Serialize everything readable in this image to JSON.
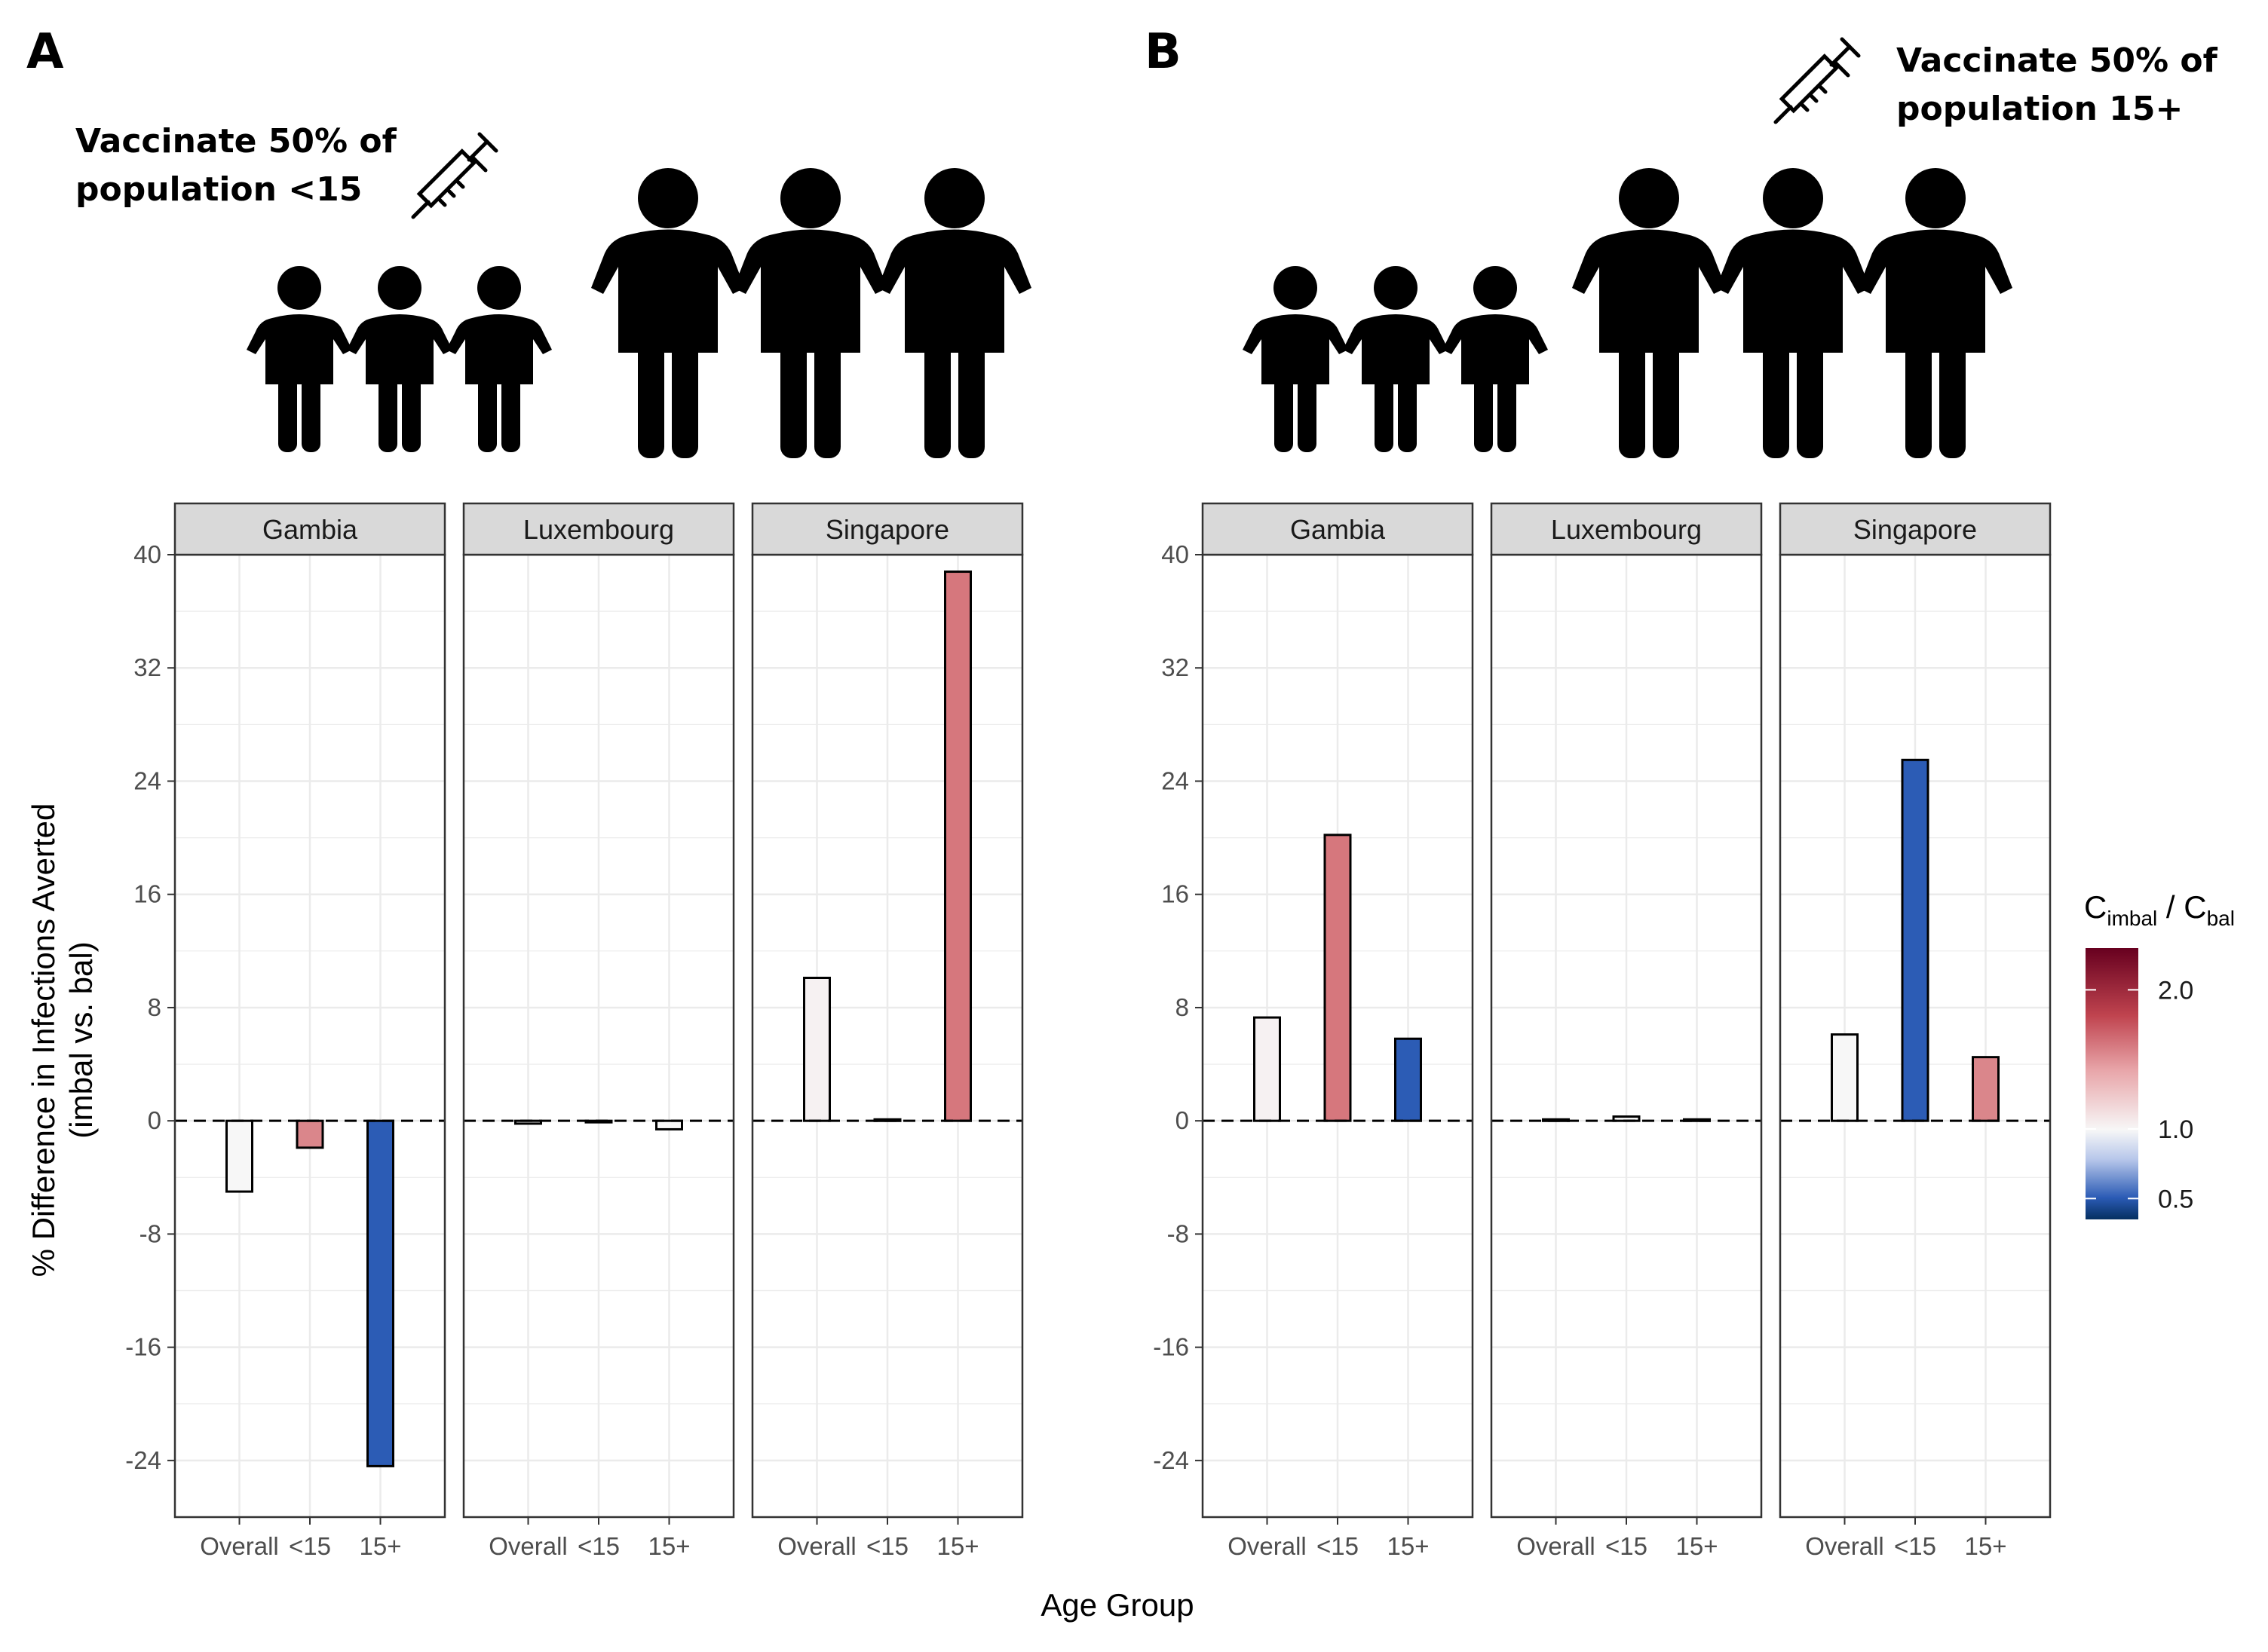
{
  "figure": {
    "panel_a": {
      "letter": "A",
      "caption_lines": [
        "Vaccinate 50% of",
        "population <15"
      ]
    },
    "panel_b": {
      "letter": "B",
      "caption_lines": [
        "Vaccinate 50% of",
        "population 15+"
      ]
    },
    "icons": [
      "syringe-icon",
      "child-figure-icon",
      "adult-figure-icon"
    ]
  },
  "chart_data": [
    {
      "type": "bar",
      "panel": "A",
      "facets": [
        "Gambia",
        "Luxembourg",
        "Singapore"
      ],
      "categories": [
        "Overall",
        "<15",
        "15+"
      ],
      "xlabel": "Age Group",
      "ylabel_lines": [
        "% Difference in Infections Averted",
        "(imbal vs. bal)"
      ],
      "ylim": [
        -28,
        40
      ],
      "yticks": [
        -24,
        -16,
        -8,
        0,
        8,
        16,
        24,
        32,
        40
      ],
      "reference_line": 0,
      "grid": true,
      "series": [
        {
          "facet": "Gambia",
          "values": [
            -5.0,
            -1.9,
            -24.4
          ],
          "ratios": [
            1.0,
            1.4,
            0.45
          ]
        },
        {
          "facet": "Luxembourg",
          "values": [
            -0.2,
            -0.1,
            -0.6
          ],
          "ratios": [
            1.0,
            1.0,
            1.0
          ]
        },
        {
          "facet": "Singapore",
          "values": [
            10.1,
            0.1,
            38.8
          ],
          "ratios": [
            1.02,
            1.0,
            1.45
          ]
        }
      ]
    },
    {
      "type": "bar",
      "panel": "B",
      "facets": [
        "Gambia",
        "Luxembourg",
        "Singapore"
      ],
      "categories": [
        "Overall",
        "<15",
        "15+"
      ],
      "xlabel": "Age Group",
      "ylim": [
        -28,
        40
      ],
      "yticks": [
        -24,
        -16,
        -8,
        0,
        8,
        16,
        24,
        32,
        40
      ],
      "reference_line": 0,
      "grid": true,
      "series": [
        {
          "facet": "Gambia",
          "values": [
            7.3,
            20.2,
            5.8
          ],
          "ratios": [
            1.02,
            1.45,
            0.45
          ]
        },
        {
          "facet": "Luxembourg",
          "values": [
            0.1,
            0.3,
            0.1
          ],
          "ratios": [
            1.0,
            1.0,
            1.0
          ]
        },
        {
          "facet": "Singapore",
          "values": [
            6.1,
            25.5,
            4.5
          ],
          "ratios": [
            1.0,
            0.45,
            1.4
          ]
        }
      ]
    }
  ],
  "legend": {
    "title_main": "C",
    "title_sub1": "imbal",
    "title_sep": " / C",
    "title_sub2": "bal",
    "ticks": [
      "2.0",
      "1.0",
      "0.5"
    ],
    "tick_values": [
      2.0,
      1.0,
      0.5
    ],
    "range": [
      0.35,
      2.3
    ],
    "colors": {
      "high": "#67001f",
      "mid_high": "#d6767c",
      "mid": "#f7f7f7",
      "mid_low": "#2b5bb5",
      "low": "#053061"
    }
  },
  "styles": {
    "strip_fill": "#d9d9d9",
    "grid_color": "#ebebeb",
    "panel_border": "#333333",
    "bar_outline": "#000000"
  }
}
